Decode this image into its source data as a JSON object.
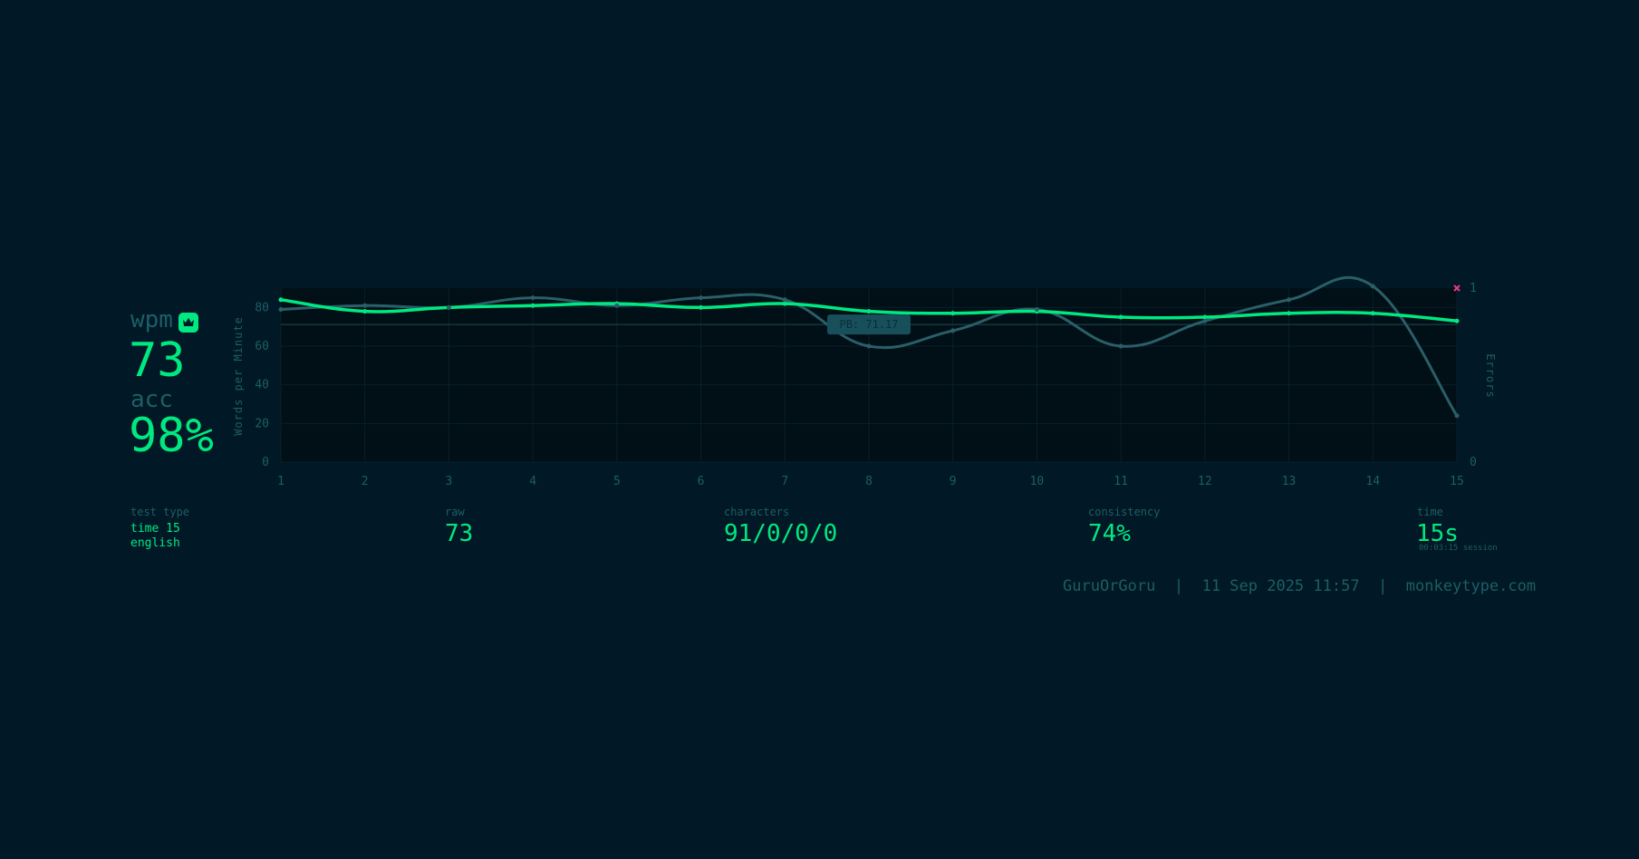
{
  "stats": {
    "wpm_label": "wpm",
    "wpm_value": "73",
    "acc_label": "acc",
    "acc_value": "98%"
  },
  "chart": {
    "ylabel": "Words per Minute",
    "y2label": "Errors",
    "pb_label": "PB: 71.17",
    "x_ticks": [
      "1",
      "2",
      "3",
      "4",
      "5",
      "6",
      "7",
      "8",
      "9",
      "10",
      "11",
      "12",
      "13",
      "14",
      "15"
    ],
    "y_ticks": [
      "0",
      "20",
      "40",
      "60",
      "80"
    ],
    "y2_ticks": [
      "0",
      "1"
    ]
  },
  "chart_data": {
    "type": "line",
    "x": [
      1,
      2,
      3,
      4,
      5,
      6,
      7,
      8,
      9,
      10,
      11,
      12,
      13,
      14,
      15
    ],
    "series": [
      {
        "name": "wpm",
        "color": "#00e980",
        "values": [
          84,
          78,
          80,
          81,
          82,
          80,
          82,
          78,
          77,
          78,
          75,
          75,
          77,
          77,
          73
        ]
      },
      {
        "name": "raw",
        "color": "#2a5f68",
        "values": [
          79,
          81,
          80,
          85,
          81,
          85,
          84,
          60,
          68,
          79,
          60,
          73,
          84,
          91,
          24
        ]
      }
    ],
    "errors": [
      {
        "x": 15,
        "y": 1
      }
    ],
    "pb": 71.17,
    "ylim": [
      0,
      90
    ],
    "y2lim": [
      0,
      1
    ],
    "xlabel": "",
    "ylabel": "Words per Minute",
    "y2label": "Errors"
  },
  "details": {
    "test_type_label": "test type",
    "test_type_line1": "time 15",
    "test_type_line2": "english",
    "raw_label": "raw",
    "raw_value": "73",
    "characters_label": "characters",
    "characters_value": "91/0/0/0",
    "consistency_label": "consistency",
    "consistency_value": "74%",
    "time_label": "time",
    "time_value": "15s",
    "session_value": "00:03:15 session"
  },
  "footer": {
    "username": "GuruOrGoru",
    "separator1": "|",
    "date": "11 Sep 2025 11:57",
    "separator2": "|",
    "site": "monkeytype.com"
  },
  "colors": {
    "background": "#011826",
    "accent": "#00e980",
    "sub": "#1c5f66",
    "error": "#e7398e"
  }
}
